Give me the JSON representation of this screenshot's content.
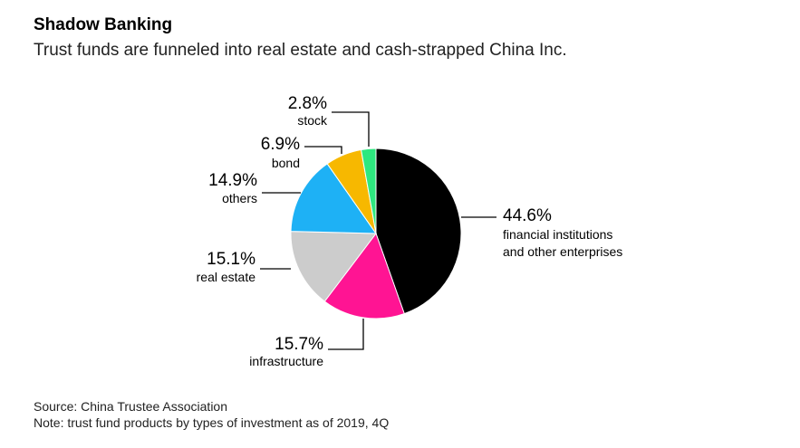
{
  "header": {
    "title": "Shadow Banking",
    "subtitle": "Trust funds are funneled into real estate and cash-strapped China Inc."
  },
  "footer": {
    "source": "Source: China Trustee Association",
    "note": "Note: trust fund products by types of investment as of 2019, 4Q"
  },
  "chart_data": {
    "type": "pie",
    "title": "Shadow Banking",
    "subtitle": "Trust funds are funneled into real estate and cash-strapped China Inc.",
    "slices": [
      {
        "label": "financial institutions and other enterprises",
        "label_lines": [
          "financial institutions",
          "and other enterprises"
        ],
        "value": 44.6,
        "display": "44.6%",
        "color": "#000000"
      },
      {
        "label": "infrastructure",
        "label_lines": [
          "infrastructure"
        ],
        "value": 15.7,
        "display": "15.7%",
        "color": "#ff1493"
      },
      {
        "label": "real estate",
        "label_lines": [
          "real estate"
        ],
        "value": 15.1,
        "display": "15.1%",
        "color": "#cccccc"
      },
      {
        "label": "others",
        "label_lines": [
          "others"
        ],
        "value": 14.9,
        "display": "14.9%",
        "color": "#1eb1f5"
      },
      {
        "label": "bond",
        "label_lines": [
          "bond"
        ],
        "value": 6.9,
        "display": "6.9%",
        "color": "#f7b800"
      },
      {
        "label": "stock",
        "label_lines": [
          "stock"
        ],
        "value": 2.8,
        "display": "2.8%",
        "color": "#2ee87f"
      }
    ],
    "start_angle": "12 o'clock",
    "direction": "clockwise",
    "legend": "none",
    "label_style": "callout lines"
  }
}
